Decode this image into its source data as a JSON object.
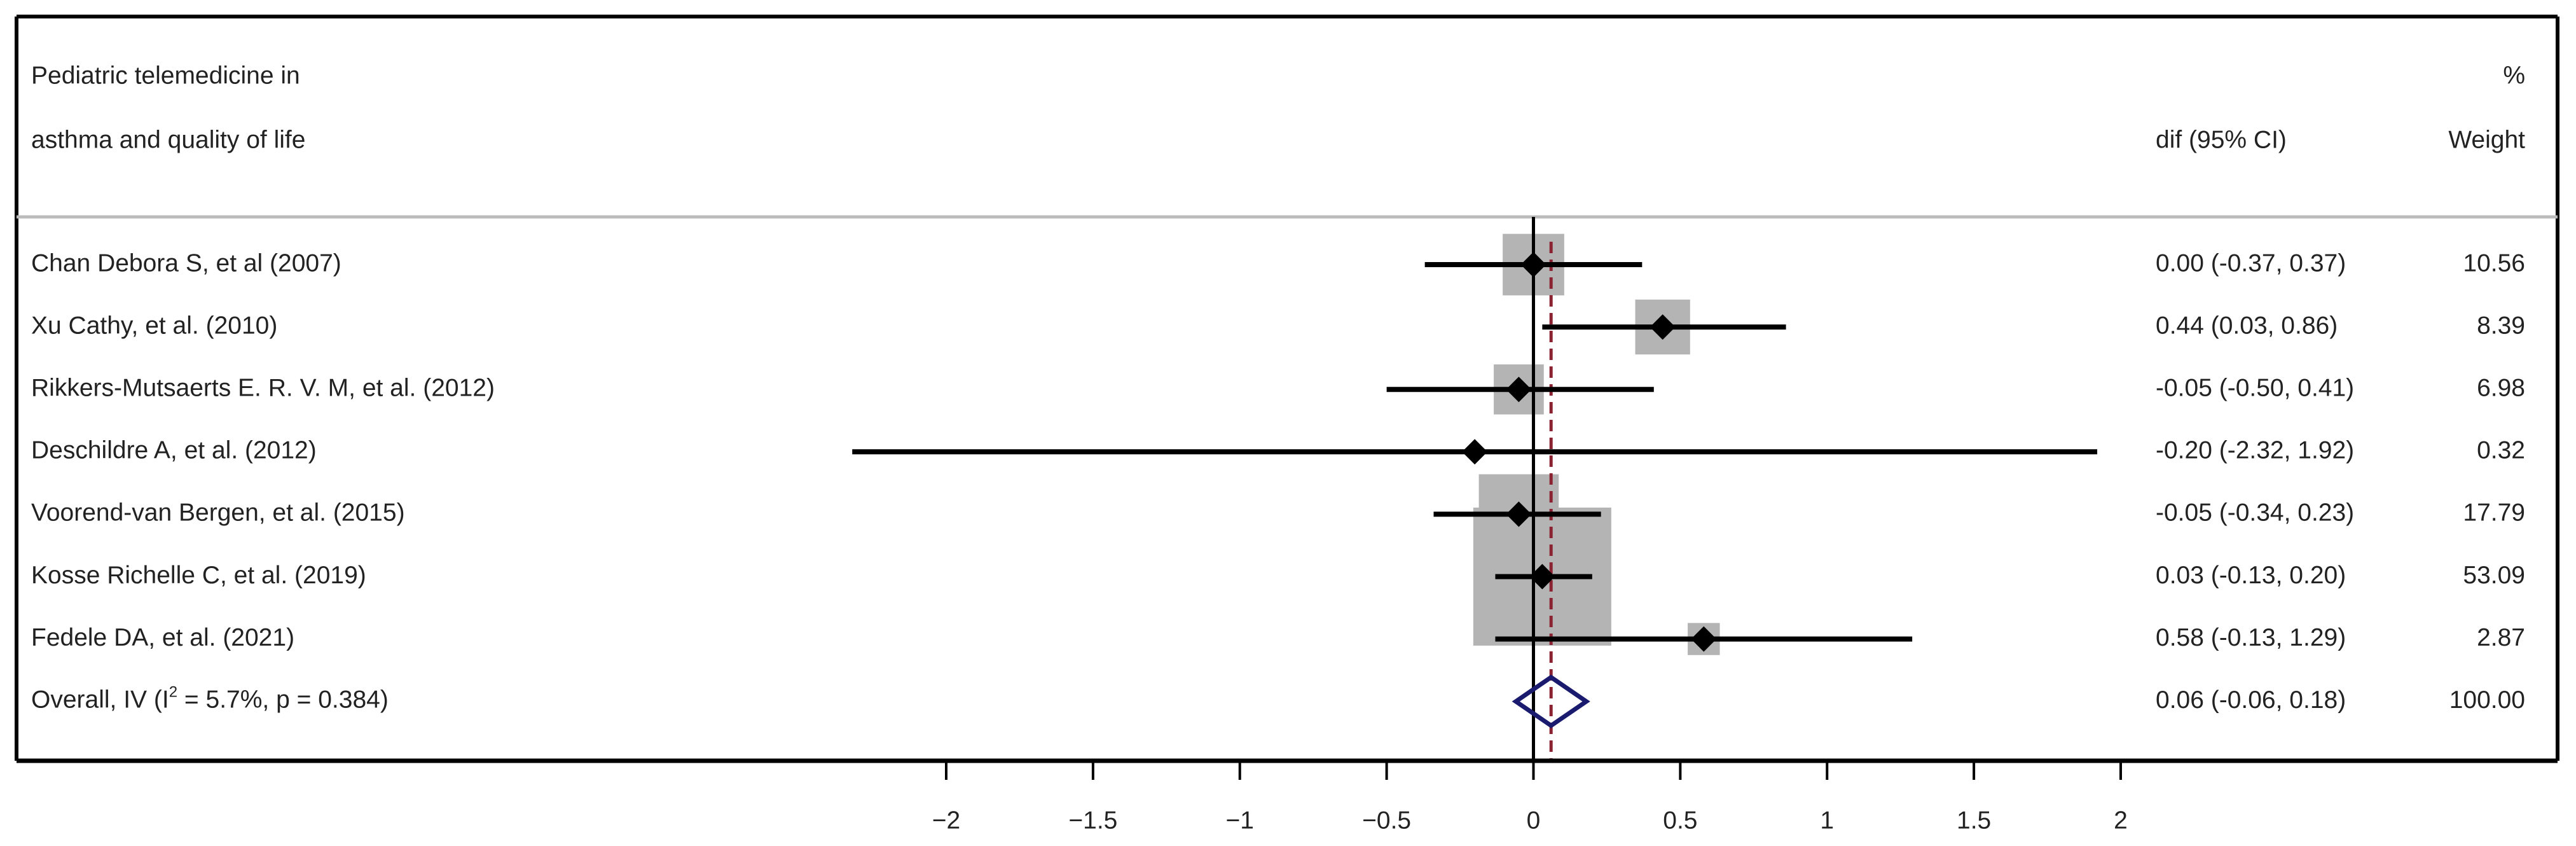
{
  "chart_data": {
    "type": "forest",
    "header": {
      "title_lines": [
        "Pediatric telemedicine in",
        "asthma and quality of life"
      ],
      "effect_header": "dif (95% CI)",
      "weight_header_lines": [
        "%",
        "Weight"
      ]
    },
    "categories": [
      "Chan Debora S, et al (2007)",
      "Xu Cathy, et al. (2010)",
      "Rikkers-Mutsaerts E. R. V. M, et al. (2012)",
      "Deschildre A, et al. (2012)",
      "Voorend-van Bergen, et al. (2015)",
      "Kosse Richelle C, et al. (2019)",
      "Fedele DA, et al. (2021)"
    ],
    "values": [
      0.0,
      0.44,
      -0.05,
      -0.2,
      -0.05,
      0.03,
      0.58
    ],
    "lower": [
      -0.37,
      0.03,
      -0.5,
      -2.32,
      -0.34,
      -0.13,
      -0.13
    ],
    "upper": [
      0.37,
      0.86,
      0.41,
      1.92,
      0.23,
      0.2,
      1.29
    ],
    "value_labels": [
      "0.00 (-0.37, 0.37)",
      "0.44 (0.03, 0.86)",
      "-0.05 (-0.50, 0.41)",
      "-0.20 (-2.32, 1.92)",
      "-0.05 (-0.34, 0.23)",
      "0.03 (-0.13, 0.20)",
      "0.58 (-0.13, 1.29)"
    ],
    "weights": [
      10.56,
      8.39,
      6.98,
      0.32,
      17.79,
      53.09,
      2.87
    ],
    "overall": {
      "label_parts": [
        "Overall, IV (I",
        "2",
        " = 5.7%, p = 0.384)"
      ],
      "value": 0.06,
      "lower": -0.06,
      "upper": 0.18,
      "value_label": "0.06 (-0.06, 0.18)",
      "weight": 100,
      "weight_label": "100.00"
    },
    "xlim": [
      -2,
      2
    ],
    "xticks": [
      {
        "value": -2,
        "label": "−2"
      },
      {
        "value": -1.5,
        "label": "−1.5"
      },
      {
        "value": -1,
        "label": "−1"
      },
      {
        "value": -0.5,
        "label": "−0.5"
      },
      0,
      0.5,
      1,
      1.5,
      2
    ],
    "colors": {
      "marker": "#000000",
      "box": "#b4b4b4",
      "diamond": "#1a1a6e",
      "overall_line": "#8b2232"
    }
  }
}
